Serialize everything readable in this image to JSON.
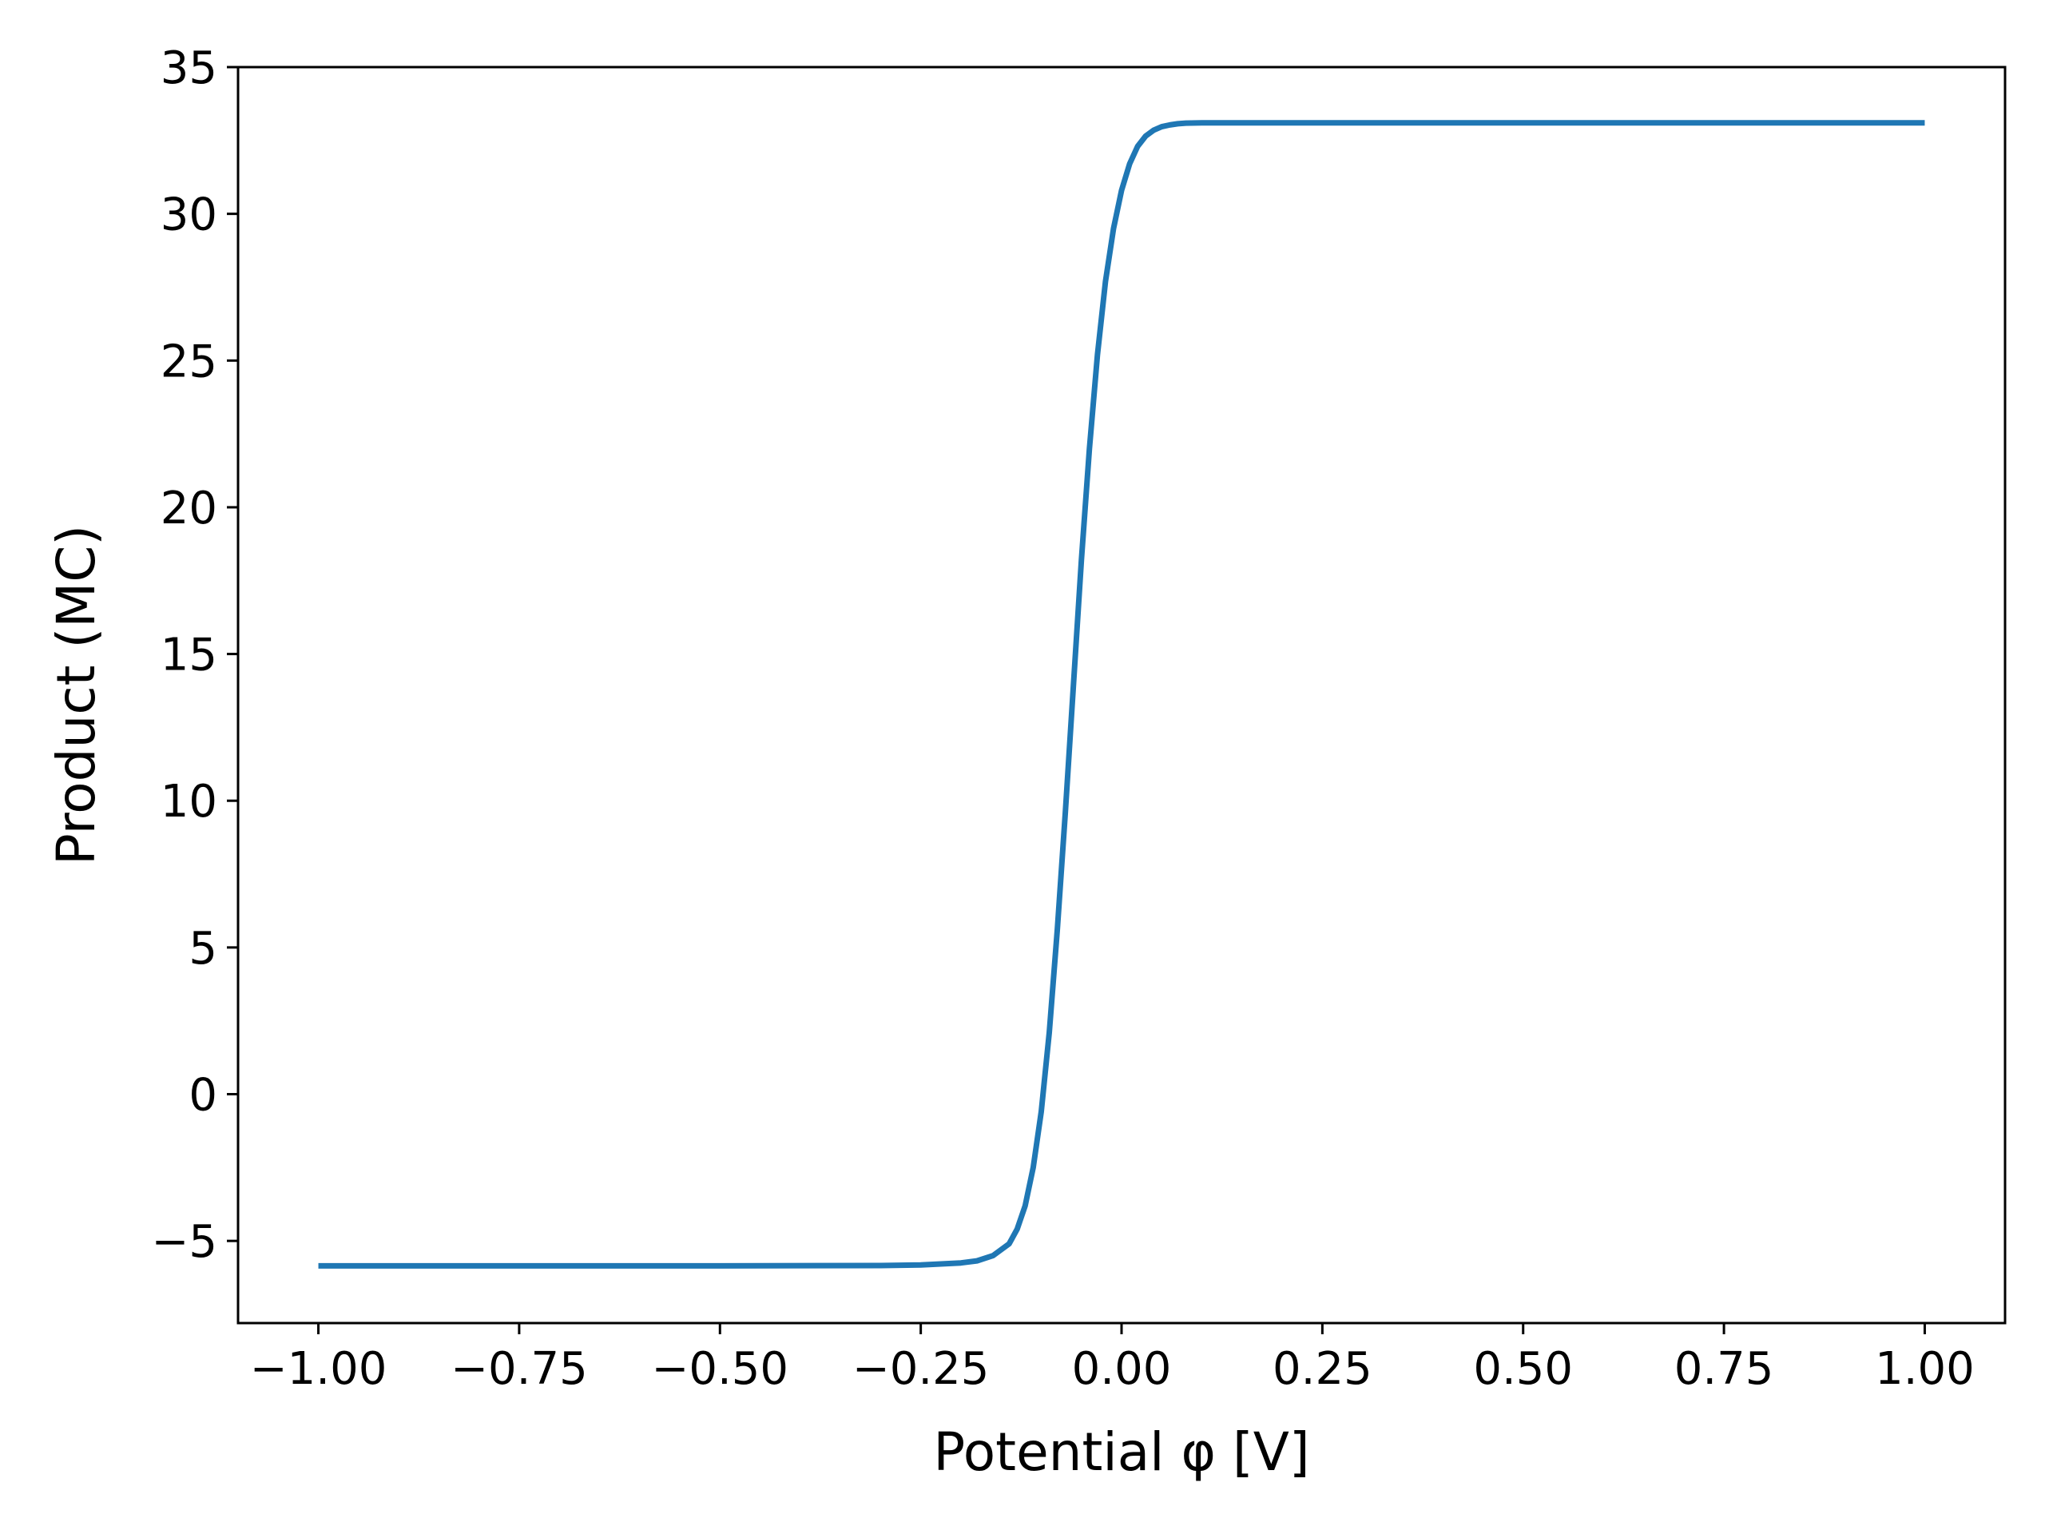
{
  "chart_data": {
    "type": "line",
    "title": "",
    "xlabel": "Potential φ [V]",
    "ylabel": "Product (MC)",
    "xlim": [
      -1.1,
      1.1
    ],
    "ylim": [
      -7.8,
      35
    ],
    "grid": false,
    "legend": "none",
    "x_ticks": [
      -1.0,
      -0.75,
      -0.5,
      -0.25,
      0.0,
      0.25,
      0.5,
      0.75,
      1.0
    ],
    "x_tick_labels": [
      "−1.00",
      "−0.75",
      "−0.50",
      "−0.25",
      "0.00",
      "0.25",
      "0.50",
      "0.75",
      "1.00"
    ],
    "y_ticks": [
      -5,
      0,
      5,
      10,
      15,
      20,
      25,
      30,
      35
    ],
    "y_tick_labels": [
      "−5",
      "0",
      "5",
      "10",
      "15",
      "20",
      "25",
      "30",
      "35"
    ],
    "series": [
      {
        "color": "#1f77b4",
        "x": [
          -1.0,
          -0.75,
          -0.5,
          -0.3,
          -0.25,
          -0.2,
          -0.18,
          -0.16,
          -0.14,
          -0.13,
          -0.12,
          -0.11,
          -0.1,
          -0.09,
          -0.08,
          -0.07,
          -0.06,
          -0.05,
          -0.04,
          -0.03,
          -0.02,
          -0.01,
          0.0,
          0.01,
          0.02,
          0.03,
          0.04,
          0.05,
          0.06,
          0.07,
          0.08,
          0.1,
          0.12,
          0.15,
          0.2,
          0.3,
          0.5,
          0.75,
          1.0
        ],
        "y": [
          -5.85,
          -5.85,
          -5.85,
          -5.84,
          -5.82,
          -5.75,
          -5.68,
          -5.5,
          -5.1,
          -4.6,
          -3.8,
          -2.5,
          -0.6,
          2.1,
          5.6,
          9.6,
          13.9,
          18.2,
          22.0,
          25.2,
          27.7,
          29.5,
          30.8,
          31.7,
          32.3,
          32.65,
          32.85,
          32.97,
          33.03,
          33.07,
          33.09,
          33.1,
          33.1,
          33.1,
          33.1,
          33.1,
          33.1,
          33.1,
          33.1
        ]
      }
    ]
  }
}
